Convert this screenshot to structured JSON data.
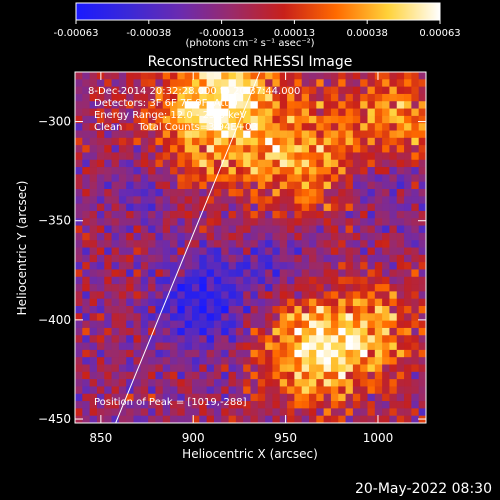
{
  "colorbar": {
    "tick_labels": [
      "-0.00063",
      "-0.00038",
      "-0.00013",
      "0.00013",
      "0.00038",
      "0.00063"
    ],
    "unit_label": "(photons cm⁻² s⁻¹ asec⁻²)",
    "colors": [
      "#1a1aff",
      "#3a28d8",
      "#6a2bb0",
      "#9a2a6a",
      "#c8201a",
      "#ff6a00",
      "#ffd23a",
      "#ffffff"
    ]
  },
  "annotations": {
    "time_range": "8-Dec-2014 20:32:28.000 to 20:37:44.000",
    "detectors": "Detectors: 3F 6F 7F 9F, Att 0",
    "energy_range": "Energy Range: 12.0 - 25.0 keV",
    "clean_counts": "Clean     Total Counts=3.94E+03",
    "peak_position": "Position of Peak = [1019,-288]"
  },
  "timestamp": "20-May-2022 08:30",
  "chart_data": {
    "type": "heatmap",
    "title": "Reconstructed RHESSI Image",
    "xlabel": "Heliocentric X (arcsec)",
    "ylabel": "Heliocentric Y (arcsec)",
    "xlim": [
      836,
      1026
    ],
    "ylim": [
      -452,
      -275
    ],
    "x_ticks": [
      850,
      900,
      950,
      1000
    ],
    "y_ticks": [
      -300,
      -350,
      -400,
      -450
    ],
    "colorbar_range": [
      -0.00063,
      0.00063
    ],
    "limb_line": [
      [
        858,
        -452
      ],
      [
        936,
        -275
      ]
    ],
    "peak": [
      1019,
      -288
    ],
    "grid": false
  }
}
